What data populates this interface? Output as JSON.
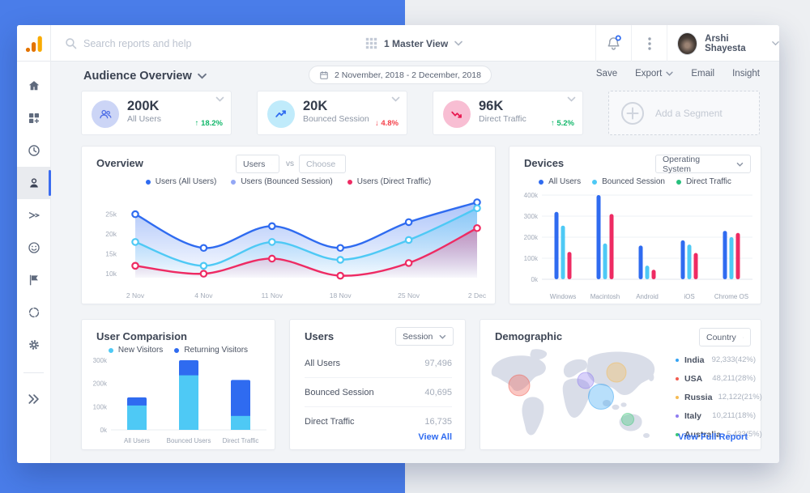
{
  "background": {
    "left_color": "#4a7de9",
    "right_color": "#edeff2"
  },
  "topbar": {
    "logo_icon": "google-analytics-logo",
    "search_placeholder": "Search reports and help",
    "view_label": "1 Master View",
    "icons": [
      "search-icon",
      "apps-grid-icon",
      "bell-icon",
      "kebab-menu-icon",
      "chevron-down-icon"
    ],
    "notification_dot_color": "#2f6bf0",
    "user_name": "Arshi Shayesta"
  },
  "sidebar": {
    "icons": [
      "home",
      "customization",
      "realtime",
      "audience",
      "acquisition",
      "behavior",
      "conversions",
      "discover",
      "admin",
      "collapse"
    ],
    "active": "audience",
    "accent_color": "#3b6cf0"
  },
  "header": {
    "title": "Audience Overview",
    "date_range": "2 November, 2018 - 2 December, 2018",
    "actions": {
      "save": "Save",
      "export": "Export",
      "email": "Email",
      "insight": "Insight"
    }
  },
  "stat_cards": [
    {
      "value": "200K",
      "label": "All Users",
      "arrow": "↑",
      "change": "18.2%",
      "trend": "up",
      "icon": "users-group-icon"
    },
    {
      "value": "20K",
      "label": "Bounced Session",
      "arrow": "↓",
      "change": "4.8%",
      "trend": "down",
      "icon": "trending-up-icon"
    },
    {
      "value": "96K",
      "label": "Direct Traffic",
      "arrow": "↑",
      "change": "5.2%",
      "trend": "up",
      "icon": "trending-down-icon"
    }
  ],
  "add_segment": {
    "label": "Add a Segment",
    "icon": "plus-circle-icon"
  },
  "overview": {
    "title": "Overview",
    "metric_dropdown": "Users",
    "vs_label": "vs",
    "compare_dropdown": "Choose",
    "legend": [
      {
        "label": "Users (All Users)",
        "color": "#2f6bf0"
      },
      {
        "label": "Users (Bounced Session)",
        "color": "#93a7f5"
      },
      {
        "label": "Users (Direct Traffic)",
        "color": "#ee2b63"
      }
    ],
    "chart_data": {
      "type": "line",
      "x": [
        "2 Nov",
        "4 Nov",
        "11 Nov",
        "18 Nov",
        "25 Nov",
        "2 Dec"
      ],
      "ylim": [
        9000,
        29000
      ],
      "yticks": [
        {
          "value": 25000,
          "label": "25k"
        },
        {
          "value": 20000,
          "label": "20k"
        },
        {
          "value": 15000,
          "label": "15k"
        },
        {
          "value": 10000,
          "label": "10k"
        }
      ],
      "series": [
        {
          "name": "Users (All Users)",
          "color": "#2f6bf0",
          "values": [
            25000,
            16500,
            22000,
            16500,
            23000,
            28000
          ]
        },
        {
          "name": "Users (Bounced Session)",
          "color": "#4ec9f5",
          "values": [
            18000,
            12000,
            18000,
            13500,
            18500,
            26500
          ]
        },
        {
          "name": "Users (Direct Traffic)",
          "color": "#ee2b63",
          "values": [
            12000,
            10000,
            13800,
            9500,
            12700,
            21500
          ]
        }
      ]
    }
  },
  "devices": {
    "title": "Devices",
    "dropdown": "Operating System",
    "legend": [
      {
        "label": "All Users",
        "color": "#2f6bf0"
      },
      {
        "label": "Bounced Session",
        "color": "#4ec9f5"
      },
      {
        "label": "Direct Traffic",
        "color": "#27c07d"
      }
    ],
    "chart_data": {
      "type": "bar",
      "categories": [
        "Windows",
        "Macintosh",
        "Android",
        "iOS",
        "Chrome OS"
      ],
      "ylim": [
        0,
        400000
      ],
      "yticks": [
        {
          "value": 400000,
          "label": "400k"
        },
        {
          "value": 300000,
          "label": "300k"
        },
        {
          "value": 200000,
          "label": "200k"
        },
        {
          "value": 100000,
          "label": "100k"
        },
        {
          "value": 0,
          "label": "0k"
        }
      ],
      "series": [
        {
          "name": "All Users",
          "color": "#2f6bf0",
          "values": [
            320000,
            400000,
            160000,
            185000,
            230000
          ]
        },
        {
          "name": "Bounced Session",
          "color": "#4ec9f5",
          "values": [
            255000,
            170000,
            65000,
            165000,
            200000
          ]
        },
        {
          "name": "Direct Traffic",
          "color": "#ee2b63",
          "values": [
            130000,
            310000,
            45000,
            125000,
            220000
          ]
        }
      ]
    }
  },
  "user_comparision": {
    "title": "User Comparision",
    "legend": [
      {
        "label": "New Visitors",
        "color": "#4ec9f5"
      },
      {
        "label": "Returning Visitors",
        "color": "#2f6bf0"
      }
    ],
    "chart_data": {
      "type": "stacked-bar",
      "categories": [
        "All Users",
        "Bounced Users",
        "Direct Traffic"
      ],
      "ylim": [
        0,
        300000
      ],
      "yticks": [
        {
          "value": 300000,
          "label": "300k"
        },
        {
          "value": 200000,
          "label": "200k"
        },
        {
          "value": 100000,
          "label": "100k"
        },
        {
          "value": 0,
          "label": "0k"
        }
      ],
      "series": [
        {
          "name": "New Visitors",
          "color": "#4ec9f5",
          "values": [
            105000,
            235000,
            60000
          ]
        },
        {
          "name": "Returning Visitors",
          "color": "#2f6bf0",
          "values": [
            35000,
            65000,
            155000
          ]
        }
      ]
    }
  },
  "users_panel": {
    "title": "Users",
    "dropdown": "Session",
    "rows": [
      {
        "label": "All Users",
        "value": "97,496"
      },
      {
        "label": "Bounced Session",
        "value": "40,695"
      },
      {
        "label": "Direct Traffic",
        "value": "16,735"
      }
    ],
    "link": "View All"
  },
  "demographic": {
    "title": "Demographic",
    "dropdown": "Country",
    "rows": [
      {
        "label": "India",
        "value": "92,333(42%)",
        "color": "#35a3f4"
      },
      {
        "label": "USA",
        "value": "48,211(28%)",
        "color": "#f25c50"
      },
      {
        "label": "Russia",
        "value": "12,122(21%)",
        "color": "#f6bb54"
      },
      {
        "label": "Italy",
        "value": "10,211(18%)",
        "color": "#8f7cf0"
      },
      {
        "label": "Australia",
        "value": "5,433(5%)",
        "color": "#3cc878"
      }
    ],
    "link": "View Full Report"
  }
}
